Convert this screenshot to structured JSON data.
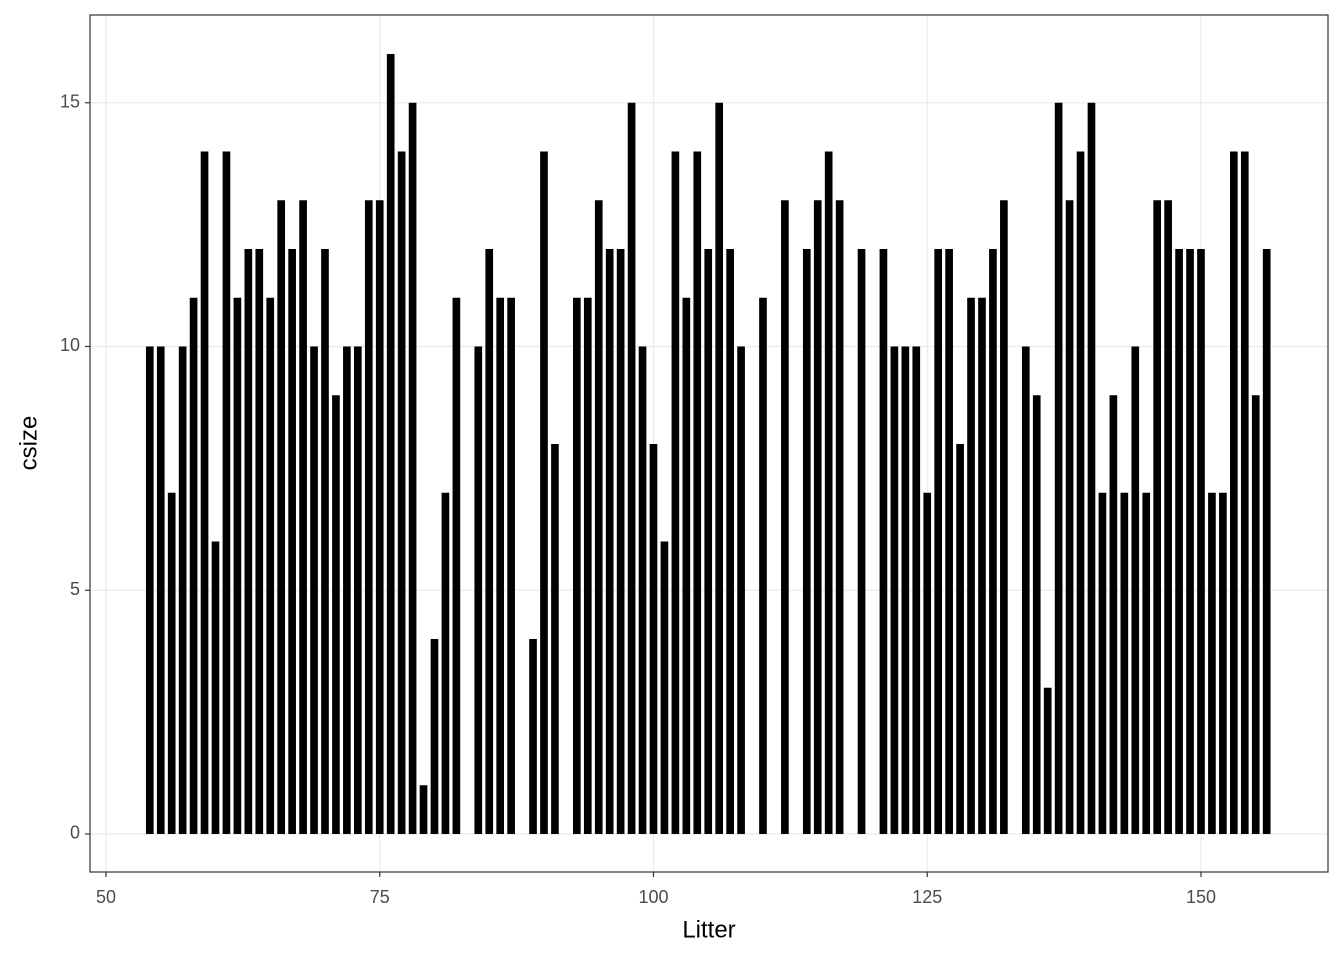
{
  "chart_data": {
    "type": "bar",
    "x_label": "Litter",
    "y_label": "csize",
    "color": "#000000",
    "grid": true,
    "x": [
      54,
      55,
      56,
      57,
      58,
      59,
      60,
      61,
      62,
      63,
      64,
      65,
      66,
      67,
      68,
      69,
      70,
      71,
      72,
      73,
      74,
      75,
      76,
      77,
      78,
      79,
      80,
      81,
      82,
      84,
      85,
      86,
      87,
      89,
      90,
      91,
      93,
      94,
      95,
      96,
      97,
      98,
      99,
      100,
      101,
      102,
      103,
      104,
      105,
      106,
      107,
      108,
      110,
      112,
      114,
      115,
      116,
      117,
      119,
      121,
      122,
      123,
      124,
      125,
      126,
      127,
      128,
      129,
      130,
      131,
      132,
      134,
      135,
      136,
      137,
      138,
      139,
      140,
      141,
      142,
      143,
      144,
      145,
      146,
      147,
      148,
      149,
      150,
      151,
      152,
      153,
      154,
      155,
      156
    ],
    "values": [
      10,
      10,
      7,
      10,
      11,
      14,
      6,
      14,
      11,
      12,
      12,
      11,
      13,
      12,
      13,
      10,
      12,
      9,
      10,
      10,
      13,
      13,
      16,
      14,
      15,
      1,
      4,
      7,
      11,
      10,
      12,
      11,
      11,
      4,
      14,
      8,
      11,
      11,
      13,
      12,
      12,
      15,
      10,
      8,
      6,
      14,
      11,
      14,
      12,
      15,
      12,
      10,
      11,
      13,
      12,
      13,
      14,
      13,
      12,
      12,
      10,
      10,
      10,
      7,
      12,
      12,
      8,
      11,
      11,
      12,
      13,
      10,
      9,
      3,
      15,
      13,
      14,
      15,
      7,
      9,
      7,
      10,
      7,
      13,
      13,
      12,
      12,
      12,
      7,
      7,
      14,
      14,
      9,
      12
    ],
    "xlim": [
      48.54,
      161.6
    ],
    "xticks": [
      50,
      75,
      100,
      125,
      150
    ],
    "ylim": [
      -0.78,
      16.8
    ],
    "yticks": [
      0,
      5,
      10,
      15
    ]
  }
}
